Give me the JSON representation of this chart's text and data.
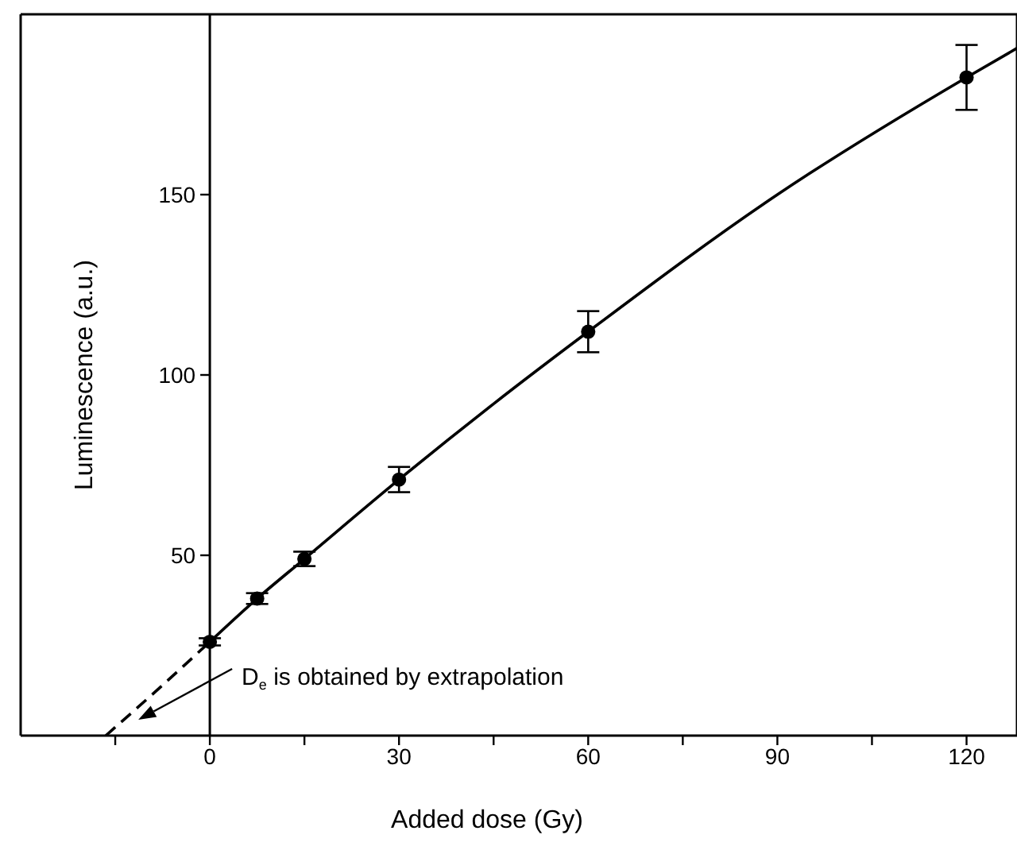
{
  "chart_data": {
    "type": "scatter",
    "xlabel": "Added dose (Gy)",
    "ylabel": "Luminescence (a.u.)",
    "x": [
      0,
      7.5,
      15,
      30,
      60,
      120
    ],
    "series": [
      {
        "color": "#000000",
        "marker": "circle",
        "values": [
          26,
          38,
          49,
          71,
          112,
          182.5
        ],
        "errors": [
          1,
          1.5,
          2,
          3.5,
          5.7,
          9
        ]
      },
      {
        "type": "line",
        "color": "#000000",
        "marker": "none",
        "line_style": "solid",
        "x": [
          0,
          7.5,
          15,
          30,
          45,
          60,
          90,
          120,
          128
        ],
        "values": [
          26,
          38,
          49,
          71,
          92,
          112,
          150,
          182.5,
          190.6
        ]
      },
      {
        "type": "line",
        "color": "#000000",
        "marker": "none",
        "line_style": "dashed",
        "x": [
          -16.5,
          -8,
          0
        ],
        "values": [
          0,
          13.2,
          26
        ]
      }
    ],
    "xlim": [
      -30,
      128
    ],
    "ylim": [
      0,
      200
    ],
    "xticks": [
      {
        "value": -15,
        "label": null
      },
      0,
      {
        "value": 15,
        "label": null
      },
      30,
      {
        "value": 45,
        "label": null
      },
      60,
      {
        "value": 75,
        "label": null
      },
      90,
      {
        "value": 105,
        "label": null
      },
      120
    ],
    "yticks": [
      50,
      100,
      150
    ],
    "annotations": [
      "D$_{e}$ is obtained by extrapolation"
    ]
  }
}
